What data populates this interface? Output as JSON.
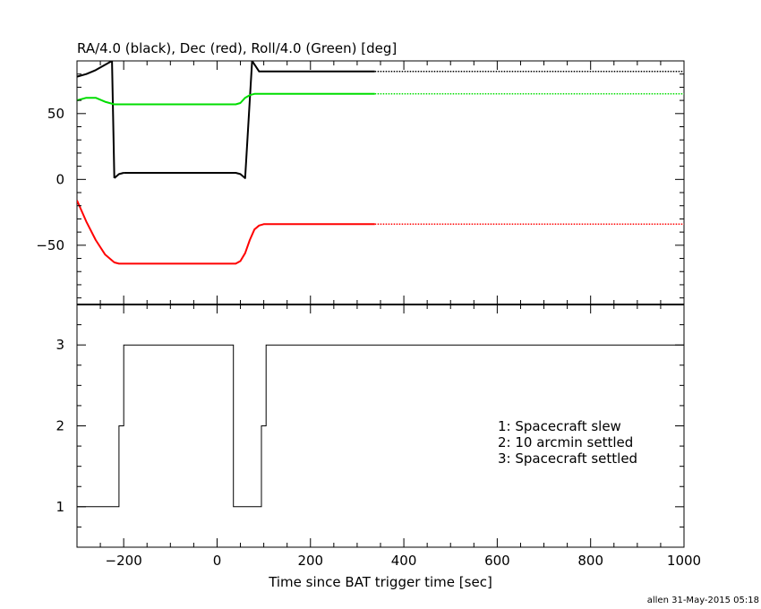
{
  "title": "RA/4.0 (black), Dec (red), Roll/4.0 (Green) [deg]",
  "xlabel": "Time since BAT trigger time [sec]",
  "footer": "allen 31-May-2015 05:18",
  "legend": [
    "1: Spacecraft slew",
    "2: 10 arcmin settled",
    "3: Spacecraft settled"
  ],
  "colors": {
    "ra": "#000000",
    "dec": "#ff0000",
    "roll": "#00dd00",
    "axis": "#000000"
  },
  "chart_data": [
    {
      "type": "line",
      "title": "RA/4.0 (black), Dec (red), Roll/4.0 (Green) [deg]",
      "xlim": [
        -300,
        1000
      ],
      "ylim": [
        -95,
        90
      ],
      "yticks": [
        -50,
        0,
        50
      ],
      "ytick_labels": [
        "−50",
        "0",
        "50"
      ],
      "grid": false,
      "series": [
        {
          "name": "RA/4.0",
          "color": "#000000",
          "dotted_after": 338,
          "x": [
            -300,
            -280,
            -260,
            -240,
            -225,
            -220,
            -210,
            -200,
            40,
            50,
            60,
            75,
            90,
            338,
            1000
          ],
          "y": [
            78,
            80,
            83,
            87,
            90,
            1,
            4,
            5,
            5,
            4,
            1,
            90,
            82,
            82,
            82
          ]
        },
        {
          "name": "Dec",
          "color": "#ff0000",
          "dotted_after": 338,
          "x": [
            -300,
            -280,
            -260,
            -240,
            -220,
            -210,
            -200,
            40,
            50,
            60,
            70,
            80,
            90,
            100,
            338,
            1000
          ],
          "y": [
            -16,
            -32,
            -46,
            -57,
            -63,
            -64,
            -64,
            -64,
            -62,
            -56,
            -46,
            -38,
            -35,
            -34,
            -34,
            -34
          ]
        },
        {
          "name": "Roll/4.0",
          "color": "#00dd00",
          "dotted_after": 338,
          "x": [
            -300,
            -280,
            -260,
            -240,
            -220,
            -200,
            40,
            50,
            60,
            70,
            80,
            338,
            1000
          ],
          "y": [
            60,
            62,
            62,
            59,
            57,
            57,
            57,
            58,
            62,
            64,
            65,
            65,
            65
          ]
        }
      ]
    },
    {
      "type": "line",
      "xlim": [
        -300,
        1000
      ],
      "ylim": [
        0.5,
        3.5
      ],
      "xticks": [
        -200,
        0,
        200,
        400,
        600,
        800,
        1000
      ],
      "xtick_labels": [
        "−200",
        "0",
        "200",
        "400",
        "600",
        "800",
        "1000"
      ],
      "yticks": [
        1,
        2,
        3
      ],
      "ytick_labels": [
        "1",
        "2",
        "3"
      ],
      "xlabel": "Time since BAT trigger time [sec]",
      "grid": false,
      "series": [
        {
          "step": true,
          "x": [
            -300,
            -210,
            -210,
            -200,
            -200,
            35,
            35,
            95,
            95,
            105,
            105,
            1000
          ],
          "y": [
            1,
            1,
            2,
            2,
            3,
            3,
            1,
            1,
            2,
            2,
            3,
            3
          ]
        }
      ]
    }
  ]
}
